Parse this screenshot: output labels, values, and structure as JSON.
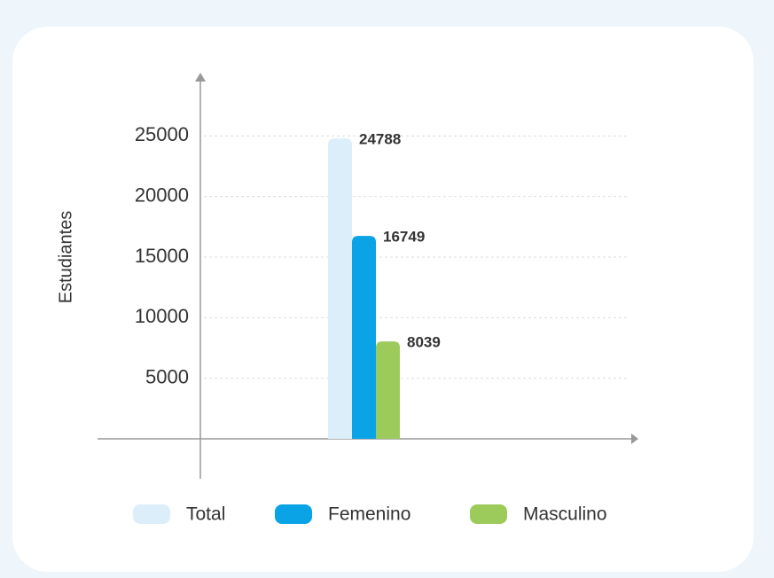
{
  "chart_data": {
    "type": "bar",
    "y_label": "Estudiantes",
    "categories": [
      null
    ],
    "series": [
      {
        "name": "Total",
        "color": "#dbeefa",
        "values": [
          24788
        ]
      },
      {
        "name": "Femenino",
        "color": "#0aa4e6",
        "values": [
          16749
        ]
      },
      {
        "name": "Masculino",
        "color": "#9ccb5c",
        "values": [
          8039
        ]
      }
    ],
    "ylim": [
      0,
      30000
    ],
    "yticks": [
      5000,
      10000,
      15000,
      20000,
      25000
    ],
    "grid": true,
    "legend": "bottom"
  }
}
